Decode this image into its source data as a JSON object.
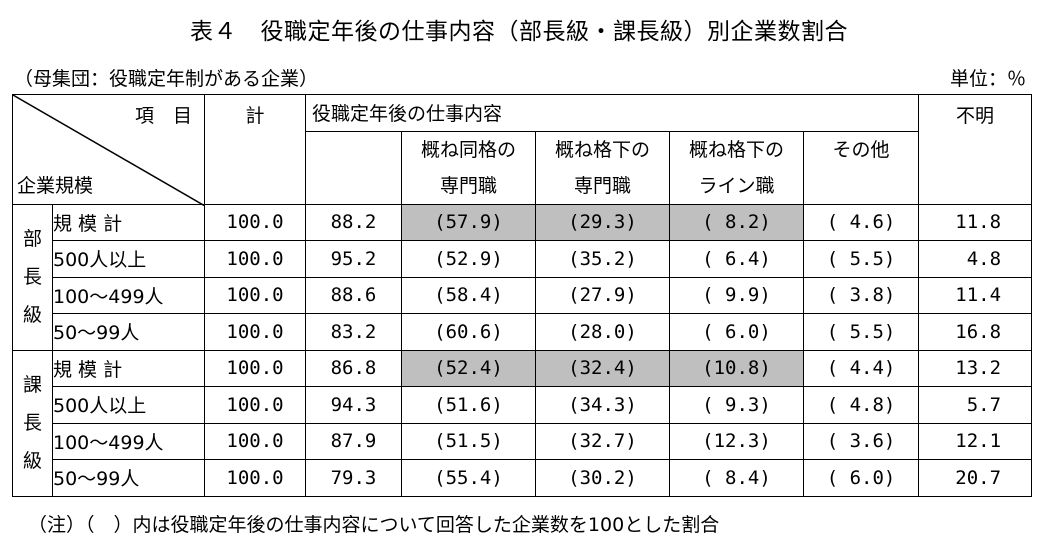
{
  "title": "表４　役職定年後の仕事内容（部長級・課長級）別企業数割合",
  "population": "（母集団：役職定年制がある企業）",
  "unit": "単位：％",
  "header": {
    "item": "項　目",
    "size": "企業規模",
    "total": "計",
    "content": "役職定年後の仕事内容",
    "unknown": "不明",
    "sub": [
      {
        "line1": "概ね同格の",
        "line2": "専門職"
      },
      {
        "line1": "概ね格下の",
        "line2": "専門職"
      },
      {
        "line1": "概ね格下の",
        "line2": "ライン職"
      },
      {
        "line1": "その他",
        "line2": ""
      }
    ]
  },
  "groups": [
    {
      "chars": [
        "部",
        "長",
        "級"
      ],
      "rows": [
        {
          "label": "規 模 計",
          "total": "100.0",
          "content": "88.2",
          "c1": "(57.9)",
          "c2": "(29.3)",
          "c3": "( 8.2)",
          "c4": "( 4.6)",
          "unknown": "11.8"
        },
        {
          "label": "500人以上",
          "total": "100.0",
          "content": "95.2",
          "c1": "(52.9)",
          "c2": "(35.2)",
          "c3": "( 6.4)",
          "c4": "( 5.5)",
          "unknown": "4.8"
        },
        {
          "label": "100～499人",
          "total": "100.0",
          "content": "88.6",
          "c1": "(58.4)",
          "c2": "(27.9)",
          "c3": "( 9.9)",
          "c4": "( 3.8)",
          "unknown": "11.4"
        },
        {
          "label": "50～99人",
          "total": "100.0",
          "content": "83.2",
          "c1": "(60.6)",
          "c2": "(28.0)",
          "c3": "( 6.0)",
          "c4": "( 5.5)",
          "unknown": "16.8"
        }
      ]
    },
    {
      "chars": [
        "課",
        "長",
        "級"
      ],
      "rows": [
        {
          "label": "規 模 計",
          "total": "100.0",
          "content": "86.8",
          "c1": "(52.4)",
          "c2": "(32.4)",
          "c3": "(10.8)",
          "c4": "( 4.4)",
          "unknown": "13.2"
        },
        {
          "label": "500人以上",
          "total": "100.0",
          "content": "94.3",
          "c1": "(51.6)",
          "c2": "(34.3)",
          "c3": "( 9.3)",
          "c4": "( 4.8)",
          "unknown": "5.7"
        },
        {
          "label": "100～499人",
          "total": "100.0",
          "content": "87.9",
          "c1": "(51.5)",
          "c2": "(32.7)",
          "c3": "(12.3)",
          "c4": "( 3.6)",
          "unknown": "12.1"
        },
        {
          "label": "50～99人",
          "total": "100.0",
          "content": "79.3",
          "c1": "(55.4)",
          "c2": "(30.2)",
          "c3": "( 8.4)",
          "c4": "( 6.0)",
          "unknown": "20.7"
        }
      ]
    }
  ],
  "note": "（注）（　）内は役職定年後の仕事内容について回答した企業数を100とした割合",
  "colors": {
    "highlight": "#bfbfbf"
  }
}
